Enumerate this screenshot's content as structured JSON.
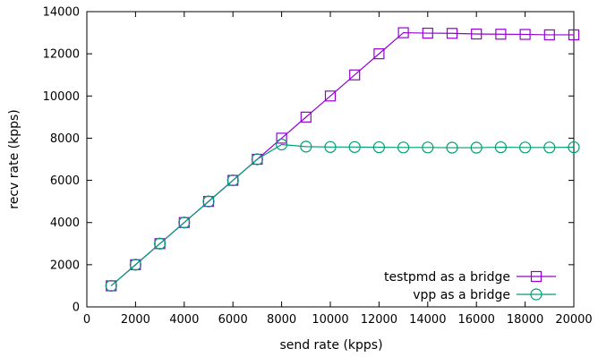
{
  "chart_data": {
    "type": "line",
    "xlabel": "send rate (kpps)",
    "ylabel": "recv rate (kpps)",
    "xlim": [
      0,
      20000
    ],
    "ylim": [
      0,
      14000
    ],
    "xticks": [
      0,
      2000,
      4000,
      6000,
      8000,
      10000,
      12000,
      14000,
      16000,
      18000,
      20000
    ],
    "yticks": [
      0,
      2000,
      4000,
      6000,
      8000,
      10000,
      12000,
      14000
    ],
    "grid": false,
    "legend_position": "bottom-right",
    "series": [
      {
        "name": "testpmd as a bridge",
        "color": "#9400d3",
        "marker": "square",
        "x": [
          1000,
          2000,
          3000,
          4000,
          5000,
          6000,
          7000,
          8000,
          9000,
          10000,
          11000,
          12000,
          13000,
          14000,
          15000,
          16000,
          17000,
          18000,
          19000,
          20000
        ],
        "y": [
          1000,
          2000,
          3000,
          4000,
          5000,
          6000,
          7000,
          8000,
          9000,
          10000,
          11000,
          12000,
          13000,
          12980,
          12970,
          12940,
          12930,
          12920,
          12900,
          12900
        ]
      },
      {
        "name": "vpp as a bridge",
        "color": "#009e73",
        "marker": "circle",
        "x": [
          1000,
          2000,
          3000,
          4000,
          5000,
          6000,
          7000,
          8000,
          9000,
          10000,
          11000,
          12000,
          13000,
          14000,
          15000,
          16000,
          17000,
          18000,
          19000,
          20000
        ],
        "y": [
          1000,
          2000,
          3000,
          4000,
          5000,
          6000,
          7000,
          7700,
          7600,
          7580,
          7580,
          7570,
          7560,
          7560,
          7550,
          7550,
          7570,
          7560,
          7560,
          7570
        ]
      }
    ]
  }
}
